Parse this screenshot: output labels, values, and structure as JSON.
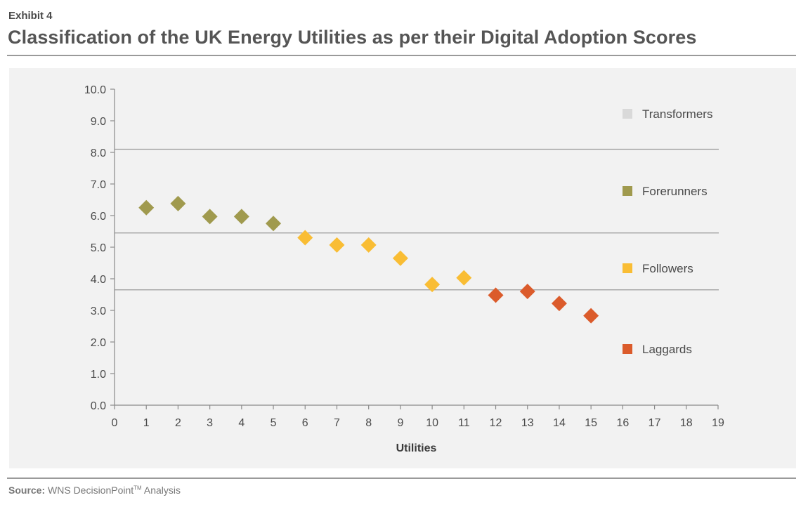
{
  "header": {
    "exhibit": "Exhibit 4",
    "title": "Classification of the UK Energy Utilities as per their Digital Adoption Scores"
  },
  "source": {
    "label": "Source:",
    "text": "WNS DecisionPoint",
    "superscript": "TM",
    "suffix": " Analysis"
  },
  "chart_data": {
    "type": "scatter",
    "xlabel": "Utilities",
    "ylabel": "",
    "xlim": [
      0,
      19
    ],
    "ylim": [
      0,
      10
    ],
    "x_ticks": [
      0,
      1,
      2,
      3,
      4,
      5,
      6,
      7,
      8,
      9,
      10,
      11,
      12,
      13,
      14,
      15,
      16,
      17,
      18,
      19
    ],
    "y_ticks": [
      "0.0",
      "1.0",
      "2.0",
      "3.0",
      "4.0",
      "5.0",
      "6.0",
      "7.0",
      "8.0",
      "9.0",
      "10.0"
    ],
    "marker": "diamond",
    "threshold_lines": [
      8.1,
      5.45,
      3.65
    ],
    "grid": false,
    "legend_position": "right",
    "series": [
      {
        "name": "Transformers",
        "color": "#d9d9d9",
        "points": []
      },
      {
        "name": "Forerunners",
        "color": "#a09a4e",
        "points": [
          [
            1,
            6.25
          ],
          [
            2,
            6.38
          ],
          [
            3,
            5.97
          ],
          [
            4,
            5.97
          ],
          [
            5,
            5.75
          ]
        ]
      },
      {
        "name": "Followers",
        "color": "#f9bd34",
        "points": [
          [
            6,
            5.3
          ],
          [
            7,
            5.07
          ],
          [
            8,
            5.07
          ],
          [
            9,
            4.65
          ],
          [
            10,
            3.82
          ],
          [
            11,
            4.03
          ]
        ]
      },
      {
        "name": "Laggards",
        "color": "#db5b2b",
        "points": [
          [
            12,
            3.48
          ],
          [
            13,
            3.6
          ],
          [
            14,
            3.22
          ],
          [
            15,
            2.83
          ]
        ]
      }
    ]
  }
}
